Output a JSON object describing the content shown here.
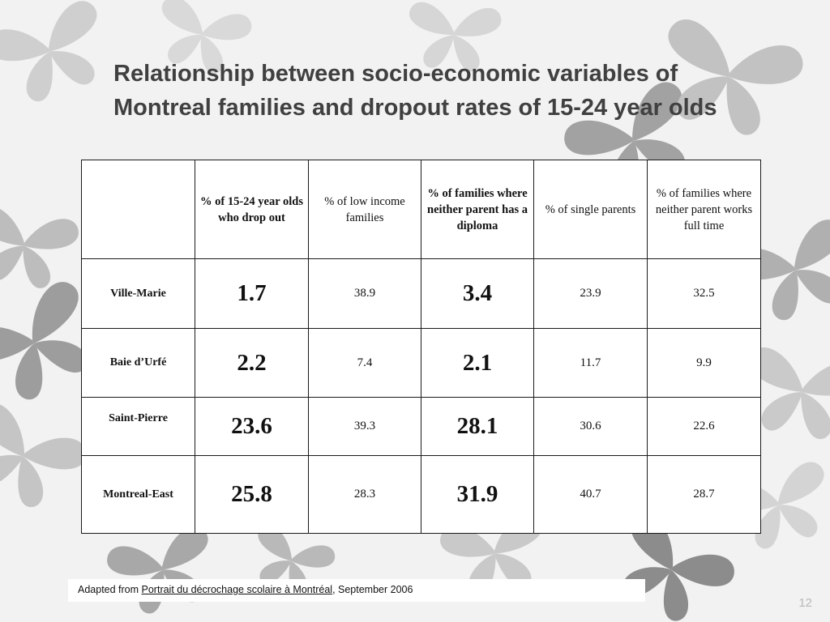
{
  "slide": {
    "title_line1": "Relationship  between socio-economic variables of",
    "title_line2": "Montreal families and dropout rates of 15-24 year olds",
    "page_number": "12"
  },
  "table": {
    "headers": [
      "",
      "% of 15-24 year olds who drop out",
      "% of  low income families",
      "% of  families where neither parent has a diploma",
      "% of   single parents",
      "% of  families where neither parent works full time"
    ],
    "rows": [
      {
        "label": "Ville-Marie",
        "dropout": "1.7",
        "low_income": "38.9",
        "no_diploma": "3.4",
        "single_parents": "23.9",
        "not_full_time": "32.5"
      },
      {
        "label": "Baie d’Urfé",
        "dropout": "2.2",
        "low_income": "7.4",
        "no_diploma": "2.1",
        "single_parents": "11.7",
        "not_full_time": "9.9"
      },
      {
        "label": "Saint-Pierre",
        "dropout": "23.6",
        "low_income": "39.3",
        "no_diploma": "28.1",
        "single_parents": "30.6",
        "not_full_time": "22.6"
      },
      {
        "label": "Montreal-East",
        "dropout": "25.8",
        "low_income": "28.3",
        "no_diploma": "31.9",
        "single_parents": "40.7",
        "not_full_time": "28.7"
      }
    ]
  },
  "footer": {
    "prefix": "Adapted from ",
    "link_text": "Portrait du décrochage scolaire à Montréal",
    "suffix": ", September 2006"
  },
  "background": {
    "motif": "butterfly-icon",
    "colors": [
      "#9a9a9a",
      "#b5b5b5",
      "#cfcfcf",
      "#7d7d7d"
    ]
  }
}
